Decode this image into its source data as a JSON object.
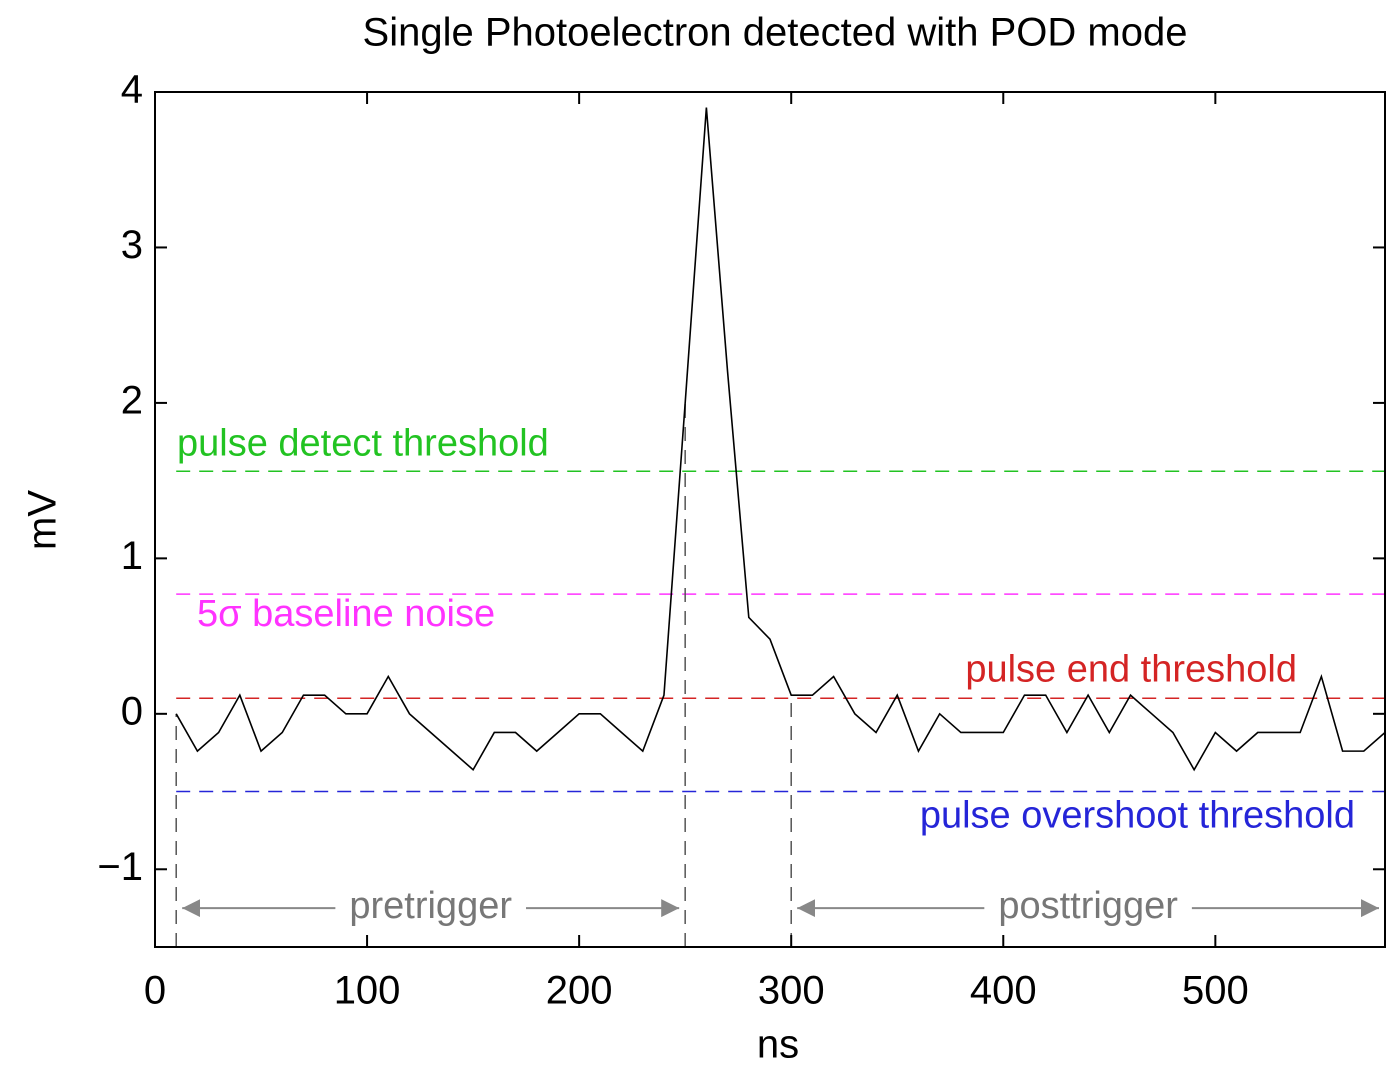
{
  "chart_data": {
    "type": "line",
    "title": "Single Photoelectron detected with POD mode",
    "xlabel": "ns",
    "ylabel": "mV",
    "x": [
      10,
      20,
      30,
      40,
      50,
      60,
      70,
      80,
      90,
      100,
      110,
      120,
      130,
      140,
      150,
      160,
      170,
      180,
      190,
      200,
      210,
      220,
      230,
      240,
      250,
      260,
      270,
      280,
      290,
      300,
      310,
      320,
      330,
      340,
      350,
      360,
      370,
      380,
      390,
      400,
      410,
      420,
      430,
      440,
      450,
      460,
      470,
      480,
      490,
      500,
      510,
      520,
      530,
      540,
      550,
      560,
      570,
      580
    ],
    "series": [
      {
        "color": "#000000",
        "values": [
          0,
          -0.24,
          -0.12,
          0.12,
          -0.24,
          -0.12,
          0.12,
          0.12,
          0,
          0,
          0.24,
          0,
          -0.12,
          -0.24,
          -0.36,
          -0.12,
          -0.12,
          -0.24,
          -0.12,
          0,
          0,
          -0.12,
          -0.24,
          0.12,
          2.0,
          3.9,
          2.2,
          0.62,
          0.48,
          0.12,
          0.12,
          0.24,
          0,
          -0.12,
          0.12,
          -0.24,
          0,
          -0.12,
          -0.12,
          -0.12,
          0.12,
          0.12,
          -0.12,
          0.12,
          -0.12,
          0.12,
          0,
          -0.12,
          -0.36,
          -0.12,
          -0.24,
          -0.12,
          -0.12,
          -0.12,
          0.24,
          -0.24,
          -0.24,
          -0.12
        ]
      }
    ],
    "thresholds": [
      {
        "label": "pulse detect threshold",
        "value": 1.56,
        "color": "#22c322"
      },
      {
        "label": "5σ baseline noise",
        "value": 0.77,
        "color": "#ff33ff"
      },
      {
        "label": "pulse end threshold",
        "value": 0.1,
        "color": "#d42424"
      },
      {
        "label": "pulse overshoot threshold",
        "value": -0.5,
        "color": "#2525d8"
      }
    ],
    "regions": [
      {
        "label": "pretrigger",
        "start": 10,
        "end": 250
      },
      {
        "label": "posttrigger",
        "start": 300,
        "end": 580
      }
    ],
    "xlim": [
      0,
      580
    ],
    "ylim": [
      -1.5,
      4
    ],
    "xticks": [
      0,
      100,
      200,
      300,
      400,
      500
    ],
    "yticks": [
      {
        "value": -1,
        "label": "−1"
      },
      0,
      1,
      2,
      3,
      4
    ]
  }
}
